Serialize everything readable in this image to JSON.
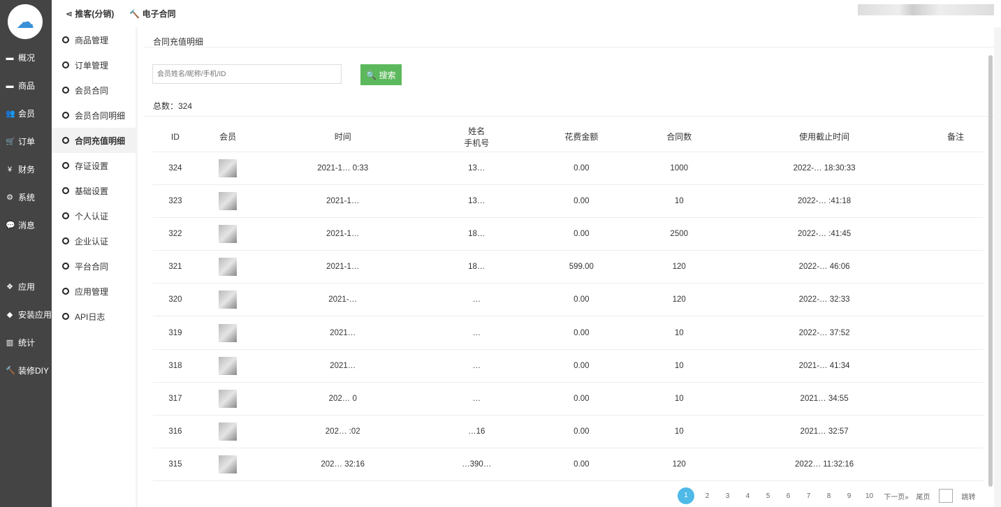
{
  "sidebar": {
    "items": [
      {
        "label": "概况",
        "icon": "archive-icon"
      },
      {
        "label": "商品",
        "icon": "archive-icon"
      },
      {
        "label": "会员",
        "icon": "users-icon"
      },
      {
        "label": "订单",
        "icon": "cart-icon"
      },
      {
        "label": "财务",
        "icon": "yen-icon"
      },
      {
        "label": "系统",
        "icon": "gears-icon"
      },
      {
        "label": "消息",
        "icon": "comment-icon"
      },
      {
        "label": "应用",
        "icon": "cubes-icon"
      },
      {
        "label": "安装应用",
        "icon": "cube-icon"
      },
      {
        "label": "统计",
        "icon": "bar-chart-icon"
      },
      {
        "label": "装修DIY",
        "icon": "gavel-icon"
      }
    ]
  },
  "topnav": [
    {
      "label": "推客(分销)",
      "icon": "share-icon"
    },
    {
      "label": "电子合同",
      "icon": "gavel-icon"
    }
  ],
  "submenu": [
    "商品管理",
    "订单管理",
    "会员合同",
    "会员合同明细",
    "合同充值明细",
    "存证设置",
    "基础设置",
    "个人认证",
    "企业认证",
    "平台合同",
    "应用管理",
    "API日志"
  ],
  "main": {
    "breadcrumb": "合同充值明细",
    "search_placeholder": "会员姓名/昵称/手机/ID",
    "search_label": "搜索",
    "total": "总数：324",
    "columns": [
      "ID",
      "会员",
      "时间",
      "姓名\n手机号",
      "花费金额",
      "合同数",
      "使用截止时间",
      "备注"
    ],
    "rows": [
      [
        "324",
        "2021-1… 0:33",
        "13…",
        "0.00",
        "1000",
        "2022-… 18:30:33"
      ],
      [
        "323",
        "2021-1…",
        "13…",
        "0.00",
        "10",
        "2022-… :41:18"
      ],
      [
        "322",
        "2021-1…",
        "18…",
        "0.00",
        "2500",
        "2022-… :41:45"
      ],
      [
        "321",
        "2021-1…",
        "18…",
        "599.00",
        "120",
        "2022-… 46:06"
      ],
      [
        "320",
        "2021-…",
        "…",
        "0.00",
        "120",
        "2022-… 32:33"
      ],
      [
        "319",
        "2021…",
        "…",
        "0.00",
        "10",
        "2022-… 37:52"
      ],
      [
        "318",
        "2021…",
        "…",
        "0.00",
        "10",
        "2021-… 41:34"
      ],
      [
        "317",
        "202… 0",
        "…",
        "0.00",
        "10",
        "2021… 34:55"
      ],
      [
        "316",
        "202… :02",
        "…16",
        "0.00",
        "10",
        "2021… 32:57"
      ],
      [
        "315",
        "202… 32:16",
        "…390…",
        "0.00",
        "120",
        "2022… 11:32:16"
      ]
    ]
  },
  "pager": {
    "pages": [
      "1",
      "2",
      "3",
      "4",
      "5",
      "6",
      "7",
      "8",
      "9",
      "10"
    ],
    "current": "1",
    "next": "下一页»",
    "last": "尾页",
    "jump": "跳转"
  }
}
